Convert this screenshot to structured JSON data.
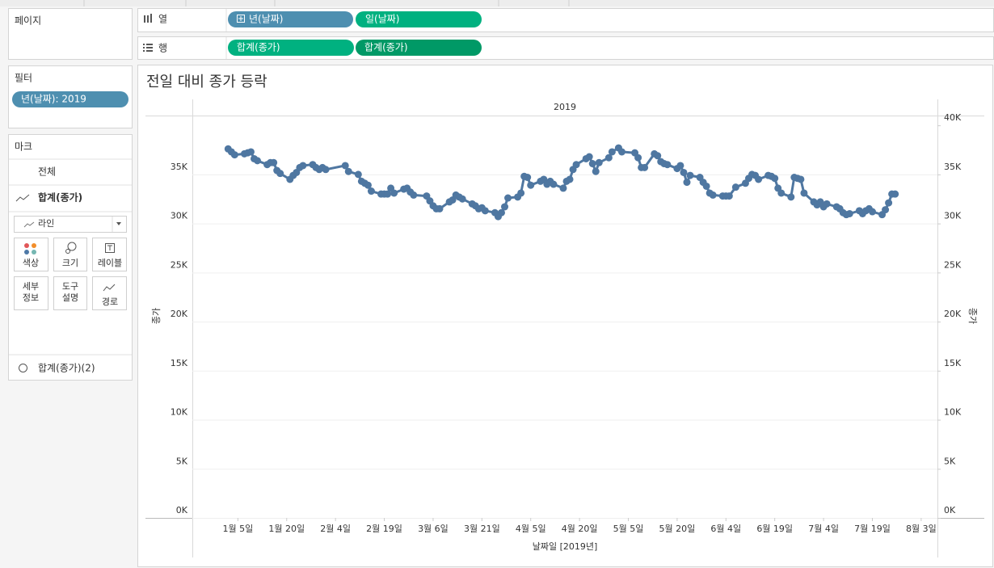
{
  "toolbar": {
    "pages": "페이지",
    "columns_label": "열",
    "rows_label": "행",
    "columns": [
      "년(날짜)",
      "일(날짜)"
    ],
    "rows": [
      "합계(종가)",
      "합계(종가)"
    ]
  },
  "filters": {
    "title": "필터",
    "items": [
      "년(날짜): 2019"
    ]
  },
  "marks": {
    "title": "마크",
    "all": "전체",
    "layers": [
      "합계(종가)",
      "합계(종가)(2)"
    ],
    "mark_type": "라인",
    "buttons": [
      [
        "색상"
      ],
      [
        "크기"
      ],
      [
        "레이블"
      ],
      [
        "세부",
        "정보"
      ],
      [
        "도구",
        "설명"
      ],
      [
        "경로"
      ]
    ]
  },
  "chart_data": {
    "type": "line",
    "title": "전일 대비 종가 등락",
    "header": "2019",
    "x_label": "날짜일 [2019년]",
    "y_label": "종가",
    "y2_label": "종가",
    "xlim": [
      "2018-12-22",
      "2019-08-08"
    ],
    "xticks": [
      {
        "value": "2019-01-05",
        "label": "1월 5일"
      },
      {
        "value": "2019-01-20",
        "label": "1월 20일"
      },
      {
        "value": "2019-02-04",
        "label": "2월 4일"
      },
      {
        "value": "2019-02-19",
        "label": "2월 19일"
      },
      {
        "value": "2019-03-06",
        "label": "3월 6일"
      },
      {
        "value": "2019-03-21",
        "label": "3월 21일"
      },
      {
        "value": "2019-04-05",
        "label": "4월 5일"
      },
      {
        "value": "2019-04-20",
        "label": "4월 20일"
      },
      {
        "value": "2019-05-05",
        "label": "5월 5일"
      },
      {
        "value": "2019-05-20",
        "label": "5월 20일"
      },
      {
        "value": "2019-06-04",
        "label": "6월 4일"
      },
      {
        "value": "2019-06-19",
        "label": "6월 19일"
      },
      {
        "value": "2019-07-04",
        "label": "7월 4일"
      },
      {
        "value": "2019-07-19",
        "label": "7월 19일"
      },
      {
        "value": "2019-08-03",
        "label": "8월 3일"
      }
    ],
    "ylim": [
      0,
      41000
    ],
    "yticks": [
      {
        "value": 0,
        "label": "0K"
      },
      {
        "value": 5000,
        "label": "5K"
      },
      {
        "value": 10000,
        "label": "10K"
      },
      {
        "value": 15000,
        "label": "15K"
      },
      {
        "value": 20000,
        "label": "20K"
      },
      {
        "value": 25000,
        "label": "25K"
      },
      {
        "value": 30000,
        "label": "30K"
      },
      {
        "value": 35000,
        "label": "35K"
      }
    ],
    "y2lim": [
      0,
      41000
    ],
    "y2ticks": [
      {
        "value": 0,
        "label": "0K"
      },
      {
        "value": 5000,
        "label": "5K"
      },
      {
        "value": 10000,
        "label": "10K"
      },
      {
        "value": 15000,
        "label": "15K"
      },
      {
        "value": 20000,
        "label": "20K"
      },
      {
        "value": 25000,
        "label": "25K"
      },
      {
        "value": 30000,
        "label": "30K"
      },
      {
        "value": 35000,
        "label": "35K"
      },
      {
        "value": 40000,
        "label": "40K"
      }
    ],
    "grid": true,
    "x": [
      "2019-01-02",
      "2019-01-03",
      "2019-01-04",
      "2019-01-07",
      "2019-01-08",
      "2019-01-09",
      "2019-01-10",
      "2019-01-11",
      "2019-01-14",
      "2019-01-15",
      "2019-01-16",
      "2019-01-17",
      "2019-01-18",
      "2019-01-21",
      "2019-01-22",
      "2019-01-23",
      "2019-01-24",
      "2019-01-25",
      "2019-01-28",
      "2019-01-29",
      "2019-01-30",
      "2019-01-31",
      "2019-02-01",
      "2019-02-07",
      "2019-02-08",
      "2019-02-11",
      "2019-02-12",
      "2019-02-13",
      "2019-02-14",
      "2019-02-15",
      "2019-02-18",
      "2019-02-19",
      "2019-02-20",
      "2019-02-21",
      "2019-02-22",
      "2019-02-25",
      "2019-02-26",
      "2019-02-27",
      "2019-02-28",
      "2019-03-04",
      "2019-03-05",
      "2019-03-06",
      "2019-03-07",
      "2019-03-08",
      "2019-03-11",
      "2019-03-12",
      "2019-03-13",
      "2019-03-14",
      "2019-03-15",
      "2019-03-18",
      "2019-03-19",
      "2019-03-20",
      "2019-03-21",
      "2019-03-22",
      "2019-03-25",
      "2019-03-26",
      "2019-03-27",
      "2019-03-28",
      "2019-03-29",
      "2019-04-01",
      "2019-04-02",
      "2019-04-03",
      "2019-04-04",
      "2019-04-05",
      "2019-04-08",
      "2019-04-09",
      "2019-04-10",
      "2019-04-11",
      "2019-04-12",
      "2019-04-15",
      "2019-04-16",
      "2019-04-17",
      "2019-04-18",
      "2019-04-19",
      "2019-04-22",
      "2019-04-23",
      "2019-04-24",
      "2019-04-25",
      "2019-04-26",
      "2019-04-29",
      "2019-04-30",
      "2019-05-02",
      "2019-05-03",
      "2019-05-07",
      "2019-05-08",
      "2019-05-09",
      "2019-05-10",
      "2019-05-13",
      "2019-05-14",
      "2019-05-15",
      "2019-05-16",
      "2019-05-17",
      "2019-05-20",
      "2019-05-21",
      "2019-05-22",
      "2019-05-23",
      "2019-05-24",
      "2019-05-27",
      "2019-05-28",
      "2019-05-29",
      "2019-05-30",
      "2019-05-31",
      "2019-06-03",
      "2019-06-04",
      "2019-06-05",
      "2019-06-07",
      "2019-06-10",
      "2019-06-11",
      "2019-06-12",
      "2019-06-13",
      "2019-06-14",
      "2019-06-17",
      "2019-06-18",
      "2019-06-19",
      "2019-06-20",
      "2019-06-21",
      "2019-06-24",
      "2019-06-25",
      "2019-06-26",
      "2019-06-27",
      "2019-06-28",
      "2019-07-01",
      "2019-07-02",
      "2019-07-03",
      "2019-07-04",
      "2019-07-05",
      "2019-07-08",
      "2019-07-09",
      "2019-07-10",
      "2019-07-11",
      "2019-07-12",
      "2019-07-15",
      "2019-07-16",
      "2019-07-17",
      "2019-07-18",
      "2019-07-19",
      "2019-07-22",
      "2019-07-23",
      "2019-07-24",
      "2019-07-25",
      "2019-07-26"
    ],
    "series": [
      {
        "color": "#4f77a1",
        "mark": "line",
        "values": [
          37600,
          37300,
          37000,
          37100,
          37200,
          37300,
          36600,
          36400,
          36000,
          36200,
          36200,
          35400,
          35100,
          34500,
          34900,
          35200,
          35700,
          35900,
          36000,
          35700,
          35500,
          35700,
          35500,
          35900,
          35300,
          35000,
          34300,
          34100,
          33900,
          33300,
          33000,
          33000,
          33000,
          33600,
          33100,
          33500,
          33600,
          33200,
          32900,
          32800,
          32300,
          31800,
          31500,
          31500,
          32200,
          32400,
          32900,
          32700,
          32500,
          32000,
          31800,
          31500,
          31600,
          31300,
          31100,
          30700,
          31100,
          31700,
          32600,
          32700,
          33100,
          34800,
          34700,
          33900,
          34300,
          34500,
          34000,
          34300,
          34000,
          33600,
          34300,
          34500,
          35500,
          36000,
          36600,
          36800,
          36100,
          35300,
          36200,
          36700,
          37300,
          37700,
          37300,
          37200,
          36700,
          35700,
          35700,
          37100,
          36900,
          36300,
          36100,
          36000,
          35600,
          35900,
          35200,
          34200,
          34900,
          34700,
          34200,
          33800,
          33100,
          32900,
          32800,
          32800,
          32800,
          33700,
          34100,
          34600,
          35000,
          34900,
          34500,
          34900,
          34800,
          34600,
          33600,
          33100,
          32700,
          34700,
          34600,
          34500,
          33100,
          32200,
          31900,
          32200,
          31700,
          32000,
          31700,
          31500,
          31100,
          30900,
          31000,
          31300,
          31000,
          31300,
          31500,
          31200,
          30900,
          31400,
          32100,
          33000,
          33000
        ]
      },
      {
        "color": "#4f77a1",
        "mark": "circle",
        "axis": "y2",
        "values": [
          37600,
          37300,
          37000,
          37100,
          37200,
          37300,
          36600,
          36400,
          36000,
          36200,
          36200,
          35400,
          35100,
          34500,
          34900,
          35200,
          35700,
          35900,
          36000,
          35700,
          35500,
          35700,
          35500,
          35900,
          35300,
          35000,
          34300,
          34100,
          33900,
          33300,
          33000,
          33000,
          33000,
          33600,
          33100,
          33500,
          33600,
          33200,
          32900,
          32800,
          32300,
          31800,
          31500,
          31500,
          32200,
          32400,
          32900,
          32700,
          32500,
          32000,
          31800,
          31500,
          31600,
          31300,
          31100,
          30700,
          31100,
          31700,
          32600,
          32700,
          33100,
          34800,
          34700,
          33900,
          34300,
          34500,
          34000,
          34300,
          34000,
          33600,
          34300,
          34500,
          35500,
          36000,
          36600,
          36800,
          36100,
          35300,
          36200,
          36700,
          37300,
          37700,
          37300,
          37200,
          36700,
          35700,
          35700,
          37100,
          36900,
          36300,
          36100,
          36000,
          35600,
          35900,
          35200,
          34200,
          34900,
          34700,
          34200,
          33800,
          33100,
          32900,
          32800,
          32800,
          32800,
          33700,
          34100,
          34600,
          35000,
          34900,
          34500,
          34900,
          34800,
          34600,
          33600,
          33100,
          32700,
          34700,
          34600,
          34500,
          33100,
          32200,
          31900,
          32200,
          31700,
          32000,
          31700,
          31500,
          31100,
          30900,
          31000,
          31300,
          31000,
          31300,
          31500,
          31200,
          30900,
          31400,
          32100,
          33000,
          33000
        ]
      }
    ]
  }
}
